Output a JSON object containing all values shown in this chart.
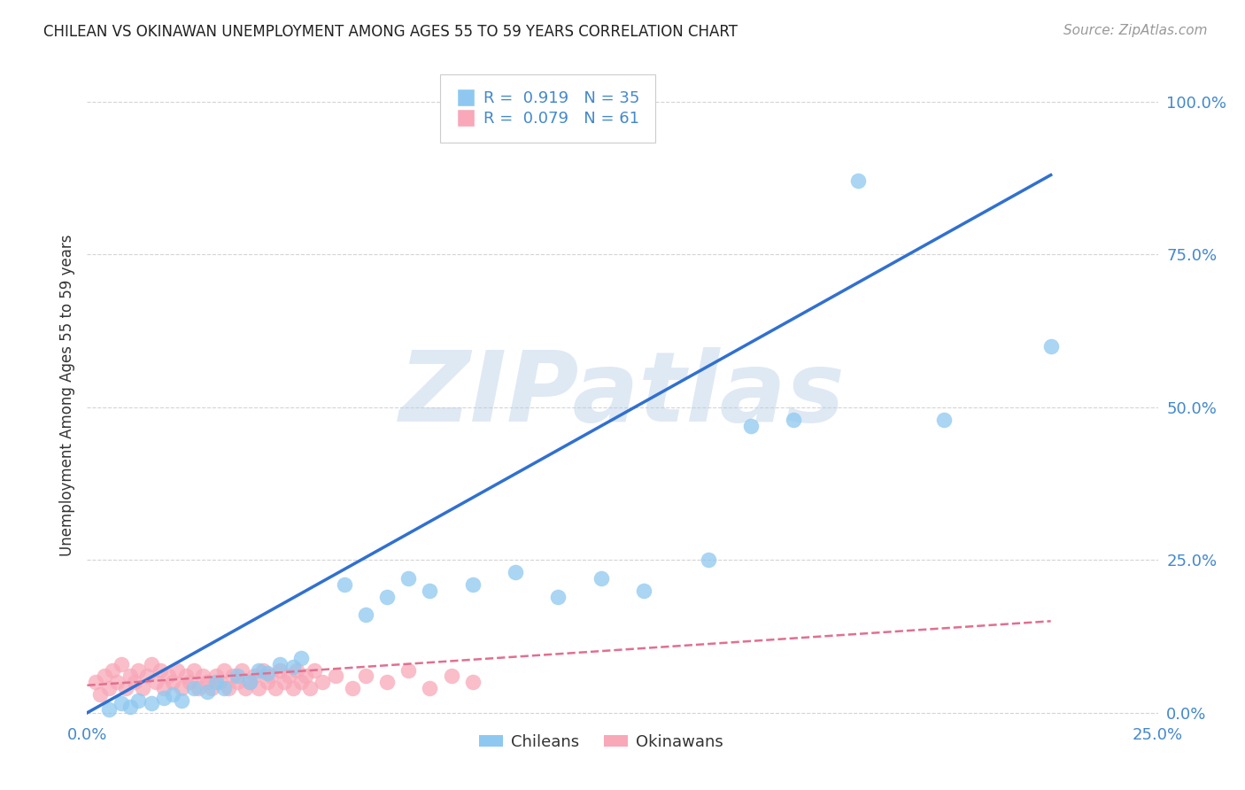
{
  "title": "CHILEAN VS OKINAWAN UNEMPLOYMENT AMONG AGES 55 TO 59 YEARS CORRELATION CHART",
  "source": "Source: ZipAtlas.com",
  "xlim": [
    0.0,
    0.25
  ],
  "ylim": [
    -0.01,
    1.05
  ],
  "ylabel": "Unemployment Among Ages 55 to 59 years",
  "watermark": "ZIPatlas",
  "legend_r_chilean": "R =  0.919",
  "legend_n_chilean": "N = 35",
  "legend_r_okinawan": "R =  0.079",
  "legend_n_okinawan": "N = 61",
  "legend_label_chilean": "Chileans",
  "legend_label_okinawan": "Okinawans",
  "chilean_color": "#8ec8f0",
  "okinawan_color": "#f8a8b8",
  "chilean_line_color": "#3070d0",
  "okinawan_line_color": "#e07090",
  "grid_color": "#d0d0d0",
  "title_color": "#222222",
  "axis_label_color": "#4488cc",
  "background_color": "#ffffff",
  "chilean_x": [
    0.005,
    0.008,
    0.01,
    0.012,
    0.015,
    0.018,
    0.02,
    0.022,
    0.025,
    0.028,
    0.03,
    0.032,
    0.035,
    0.038,
    0.04,
    0.042,
    0.045,
    0.048,
    0.05,
    0.06,
    0.065,
    0.07,
    0.075,
    0.08,
    0.09,
    0.1,
    0.11,
    0.12,
    0.13,
    0.145,
    0.155,
    0.165,
    0.18,
    0.2,
    0.225
  ],
  "chilean_y": [
    0.005,
    0.015,
    0.01,
    0.02,
    0.015,
    0.025,
    0.03,
    0.02,
    0.04,
    0.035,
    0.05,
    0.04,
    0.06,
    0.05,
    0.07,
    0.065,
    0.08,
    0.075,
    0.09,
    0.21,
    0.16,
    0.19,
    0.22,
    0.2,
    0.21,
    0.23,
    0.19,
    0.22,
    0.2,
    0.25,
    0.47,
    0.48,
    0.87,
    0.48,
    0.6
  ],
  "okinawan_x": [
    0.002,
    0.003,
    0.004,
    0.005,
    0.006,
    0.007,
    0.008,
    0.009,
    0.01,
    0.011,
    0.012,
    0.013,
    0.014,
    0.015,
    0.016,
    0.017,
    0.018,
    0.019,
    0.02,
    0.021,
    0.022,
    0.023,
    0.024,
    0.025,
    0.026,
    0.027,
    0.028,
    0.029,
    0.03,
    0.031,
    0.032,
    0.033,
    0.034,
    0.035,
    0.036,
    0.037,
    0.038,
    0.039,
    0.04,
    0.041,
    0.042,
    0.043,
    0.044,
    0.045,
    0.046,
    0.047,
    0.048,
    0.049,
    0.05,
    0.051,
    0.052,
    0.053,
    0.055,
    0.058,
    0.062,
    0.065,
    0.07,
    0.075,
    0.08,
    0.085,
    0.09
  ],
  "okinawan_y": [
    0.05,
    0.03,
    0.06,
    0.04,
    0.07,
    0.05,
    0.08,
    0.04,
    0.06,
    0.05,
    0.07,
    0.04,
    0.06,
    0.08,
    0.05,
    0.07,
    0.04,
    0.06,
    0.05,
    0.07,
    0.04,
    0.06,
    0.05,
    0.07,
    0.04,
    0.06,
    0.05,
    0.04,
    0.06,
    0.05,
    0.07,
    0.04,
    0.06,
    0.05,
    0.07,
    0.04,
    0.05,
    0.06,
    0.04,
    0.07,
    0.05,
    0.06,
    0.04,
    0.07,
    0.05,
    0.06,
    0.04,
    0.07,
    0.05,
    0.06,
    0.04,
    0.07,
    0.05,
    0.06,
    0.04,
    0.06,
    0.05,
    0.07,
    0.04,
    0.06,
    0.05
  ],
  "chilean_line_x": [
    0.0,
    0.225
  ],
  "chilean_line_y": [
    0.0,
    0.88
  ],
  "okinawan_line_x": [
    0.0,
    0.225
  ],
  "okinawan_line_y": [
    0.045,
    0.15
  ]
}
